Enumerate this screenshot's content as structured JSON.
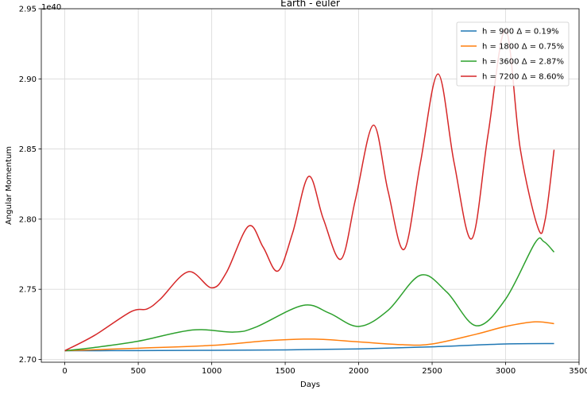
{
  "chart_data": {
    "type": "line",
    "title": "Earth - euler",
    "xlabel": "Days",
    "ylabel": "Angular Momentum",
    "y_offset_label": "1e40",
    "xlim": [
      -160,
      3500
    ],
    "ylim": [
      2.698,
      2.95
    ],
    "x_ticks": [
      0,
      500,
      1000,
      1500,
      2000,
      2500,
      3000,
      3500
    ],
    "x_tick_labels": [
      "0",
      "500",
      "1000",
      "1500",
      "2000",
      "2500",
      "3000",
      "3500"
    ],
    "y_ticks": [
      2.7,
      2.75,
      2.8,
      2.85,
      2.9,
      2.95
    ],
    "y_tick_labels": [
      "2.70",
      "2.75",
      "2.80",
      "2.85",
      "2.90",
      "2.95"
    ],
    "grid": true,
    "legend_position": "top-right",
    "series": [
      {
        "name": "h = 900 Δ =  0.19%",
        "color": "#1f77b4",
        "points": [
          [
            0,
            2.7062
          ],
          [
            500,
            2.7063
          ],
          [
            1000,
            2.7065
          ],
          [
            1500,
            2.7068
          ],
          [
            2000,
            2.7075
          ],
          [
            2500,
            2.709
          ],
          [
            3000,
            2.711
          ],
          [
            3330,
            2.7113
          ]
        ]
      },
      {
        "name": "h = 1800 Δ =  0.75%",
        "color": "#ff7f0e",
        "points": [
          [
            0,
            2.7062
          ],
          [
            500,
            2.708
          ],
          [
            1000,
            2.71
          ],
          [
            1400,
            2.7135
          ],
          [
            1700,
            2.7145
          ],
          [
            2000,
            2.7125
          ],
          [
            2300,
            2.7105
          ],
          [
            2500,
            2.711
          ],
          [
            2800,
            2.718
          ],
          [
            3000,
            2.7235
          ],
          [
            3200,
            2.7268
          ],
          [
            3330,
            2.7255
          ]
        ]
      },
      {
        "name": "h = 3600 Δ =  2.87%",
        "color": "#2ca02c",
        "points": [
          [
            0,
            2.7062
          ],
          [
            200,
            2.7085
          ],
          [
            500,
            2.713
          ],
          [
            870,
            2.721
          ],
          [
            1150,
            2.7195
          ],
          [
            1300,
            2.723
          ],
          [
            1620,
            2.7385
          ],
          [
            1800,
            2.733
          ],
          [
            2000,
            2.7235
          ],
          [
            2200,
            2.735
          ],
          [
            2420,
            2.76
          ],
          [
            2600,
            2.748
          ],
          [
            2800,
            2.724
          ],
          [
            3000,
            2.743
          ],
          [
            3200,
            2.783
          ],
          [
            3260,
            2.784
          ],
          [
            3330,
            2.7765
          ]
        ]
      },
      {
        "name": "h = 7200 Δ =  8.60%",
        "color": "#d62728",
        "points": [
          [
            0,
            2.7062
          ],
          [
            200,
            2.717
          ],
          [
            450,
            2.734
          ],
          [
            560,
            2.736
          ],
          [
            650,
            2.743
          ],
          [
            840,
            2.7625
          ],
          [
            1000,
            2.751
          ],
          [
            1100,
            2.762
          ],
          [
            1250,
            2.795
          ],
          [
            1350,
            2.78
          ],
          [
            1450,
            2.763
          ],
          [
            1550,
            2.79
          ],
          [
            1660,
            2.8305
          ],
          [
            1760,
            2.8
          ],
          [
            1880,
            2.7715
          ],
          [
            1980,
            2.815
          ],
          [
            2100,
            2.867
          ],
          [
            2200,
            2.82
          ],
          [
            2310,
            2.7785
          ],
          [
            2420,
            2.84
          ],
          [
            2540,
            2.9035
          ],
          [
            2650,
            2.84
          ],
          [
            2770,
            2.786
          ],
          [
            2880,
            2.86
          ],
          [
            3000,
            2.935
          ],
          [
            3100,
            2.85
          ],
          [
            3220,
            2.794
          ],
          [
            3270,
            2.8
          ],
          [
            3330,
            2.8495
          ]
        ]
      }
    ]
  }
}
